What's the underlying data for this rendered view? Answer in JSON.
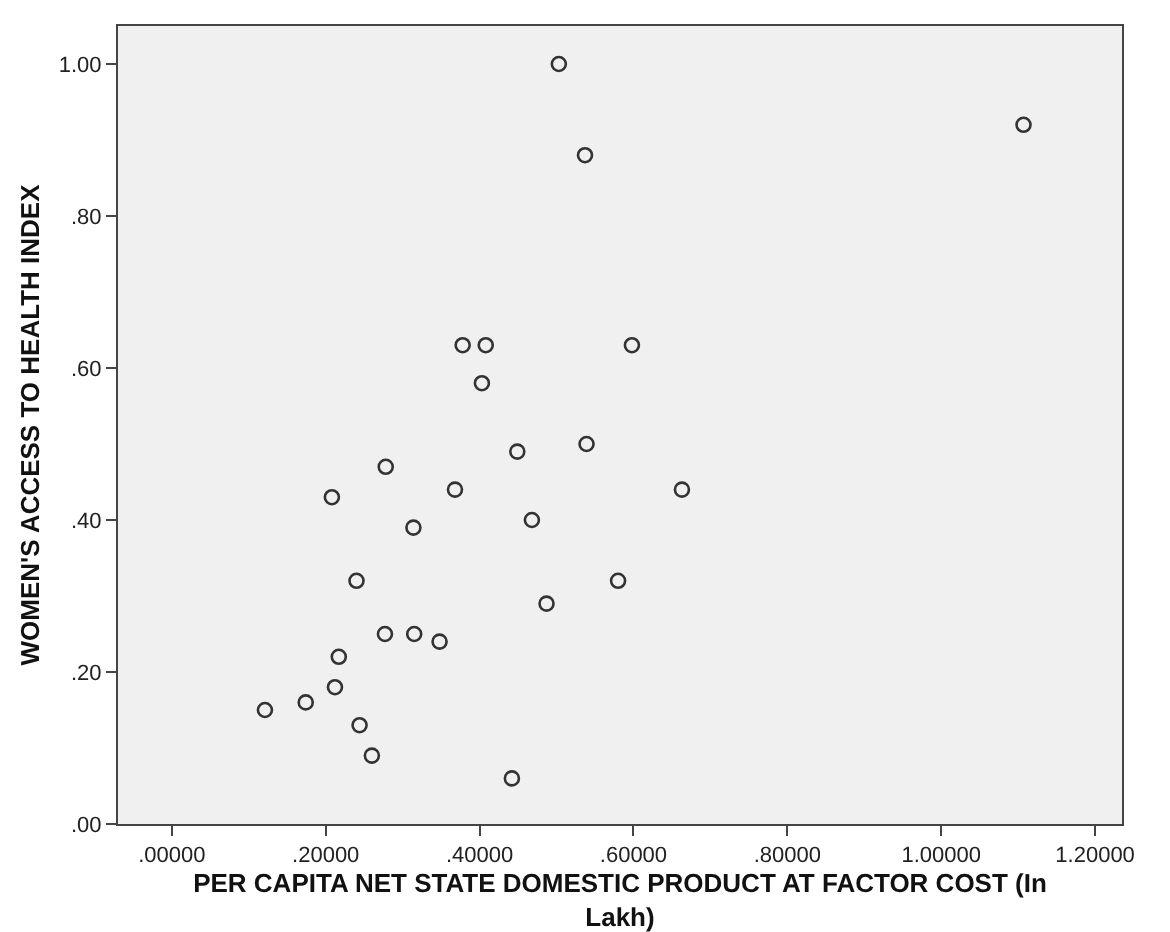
{
  "chart_data": {
    "type": "scatter",
    "xlabel": "PER CAPITA NET STATE DOMESTIC PRODUCT AT FACTOR COST (In Lakh)",
    "ylabel": "WOMEN'S ACCESS TO HEALTH INDEX",
    "x": [
      0.503,
      0.537,
      1.107,
      0.378,
      0.408,
      0.403,
      0.449,
      0.598,
      0.539,
      0.278,
      0.208,
      0.368,
      0.314,
      0.468,
      0.24,
      0.277,
      0.315,
      0.348,
      0.217,
      0.212,
      0.174,
      0.121,
      0.244,
      0.26,
      0.442,
      0.487,
      0.663,
      0.58
    ],
    "values": [
      1.0,
      0.88,
      0.92,
      0.63,
      0.63,
      0.58,
      0.49,
      0.63,
      0.5,
      0.47,
      0.43,
      0.44,
      0.39,
      0.4,
      0.32,
      0.25,
      0.25,
      0.24,
      0.22,
      0.18,
      0.16,
      0.15,
      0.13,
      0.09,
      0.06,
      0.29,
      0.44,
      0.32
    ],
    "color": "#333333",
    "marker": "circle",
    "grid": false,
    "xlim": [
      -0.07,
      1.235
    ],
    "ylim": [
      0,
      1.05
    ],
    "xticks": [
      {
        "value": 0,
        "label": ".00000"
      },
      {
        "value": 0.2,
        "label": ".20000"
      },
      {
        "value": 0.4,
        "label": ".40000"
      },
      {
        "value": 0.6,
        "label": ".60000"
      },
      {
        "value": 0.8,
        "label": ".80000"
      },
      {
        "value": 1.0,
        "label": "1.00000"
      },
      {
        "value": 1.2,
        "label": "1.20000"
      }
    ],
    "yticks": [
      {
        "value": 0,
        "label": ".00"
      },
      {
        "value": 0.2,
        "label": ".20"
      },
      {
        "value": 0.4,
        "label": ".40"
      },
      {
        "value": 0.6,
        "label": ".60"
      },
      {
        "value": 0.8,
        "label": ".80"
      },
      {
        "value": 1.0,
        "label": "1.00"
      }
    ]
  }
}
